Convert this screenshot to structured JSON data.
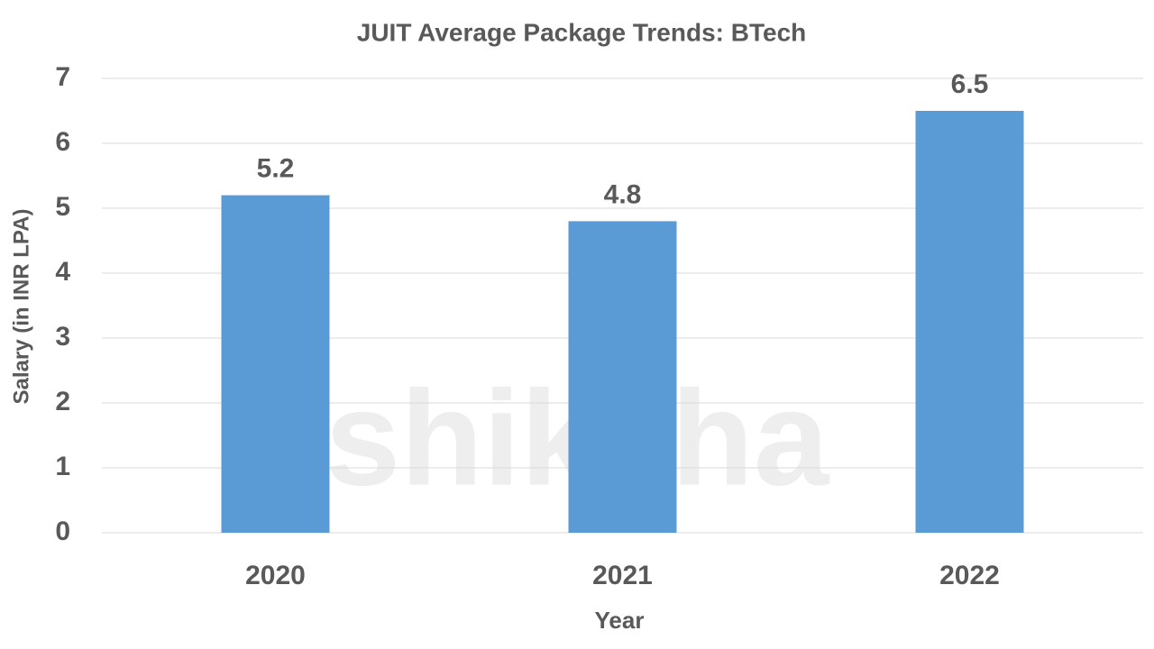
{
  "chart_data": {
    "type": "bar",
    "title": "JUIT Average Package Trends: BTech",
    "x_label": "Year",
    "y_label": "Salary (in INR LPA)",
    "watermark": "shiksha",
    "categories": [
      "2020",
      "2021",
      "2022"
    ],
    "values": [
      5.2,
      4.8,
      6.5
    ],
    "color": "#5b9bd5",
    "ylim": [
      0,
      7
    ],
    "yticks": [
      0,
      1,
      2,
      3,
      4,
      5,
      6,
      7
    ],
    "grid": true,
    "data_labels": true
  }
}
